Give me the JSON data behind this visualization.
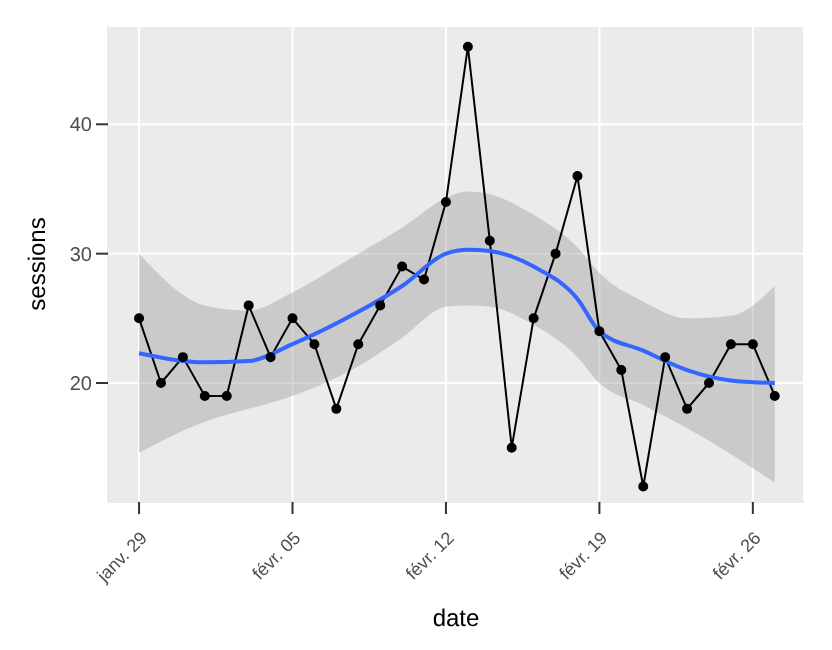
{
  "chart_data": {
    "type": "line",
    "xlabel": "date",
    "ylabel": "sessions",
    "x": [
      "--01-29",
      "--01-30",
      "--01-31",
      "--02-01",
      "--02-02",
      "--02-03",
      "--02-04",
      "--02-05",
      "--02-06",
      "--02-07",
      "--02-08",
      "--02-09",
      "--02-10",
      "--02-11",
      "--02-12",
      "--02-13",
      "--02-14",
      "--02-15",
      "--02-16",
      "--02-17",
      "--02-18",
      "--02-19",
      "--02-20",
      "--02-21",
      "--02-22",
      "--02-23",
      "--02-24",
      "--02-25",
      "--02-26",
      "--02-27"
    ],
    "series": [
      {
        "color": "#000000",
        "marker": "circle",
        "values": [
          25,
          20,
          22,
          19,
          19,
          26,
          22,
          25,
          23,
          18,
          23,
          26,
          29,
          28,
          34,
          46,
          31,
          15,
          25,
          30,
          36,
          24,
          21,
          12,
          22,
          18,
          20,
          23,
          23,
          19
        ]
      },
      {
        "color": "#3366ff",
        "marker": "none",
        "x": [
          "--01-29",
          "--02-01",
          "--02-03",
          "--02-05",
          "--02-08",
          "--02-10",
          "--02-12",
          "--02-13",
          "--02-14",
          "--02-16",
          "--02-18",
          "--02-19",
          "--02-21",
          "--02-23",
          "--02-25",
          "--02-27"
        ],
        "values": [
          22.3,
          21.6,
          21.7,
          23,
          25.5,
          27.5,
          30,
          30.3,
          30.2,
          29,
          26.5,
          24,
          22.5,
          21,
          20.2,
          20
        ],
        "lower": [
          14.6,
          17,
          18,
          19,
          21.3,
          23.5,
          25.9,
          26,
          25.9,
          24.5,
          22,
          20,
          18.3,
          16.5,
          14.5,
          12.3
        ],
        "upper": [
          30,
          26,
          25.6,
          27,
          30,
          32,
          34.3,
          34.8,
          34.6,
          33,
          30.5,
          28.5,
          26.3,
          25,
          25.2,
          27.5
        ]
      }
    ],
    "xlim": [
      "--01-27T14:00",
      "--02-28T08:00"
    ],
    "xticks": [
      {
        "value": "--01-29",
        "label": "janv. 29"
      },
      {
        "value": "--02-05",
        "label": "févr. 05"
      },
      {
        "value": "--02-12",
        "label": "févr. 12"
      },
      {
        "value": "--02-19",
        "label": "févr. 19"
      },
      {
        "value": "--02-26",
        "label": "févr. 26"
      }
    ],
    "ylim": [
      10.8,
      47.6
    ],
    "yticks": [
      20,
      30,
      40
    ],
    "grid": true
  }
}
